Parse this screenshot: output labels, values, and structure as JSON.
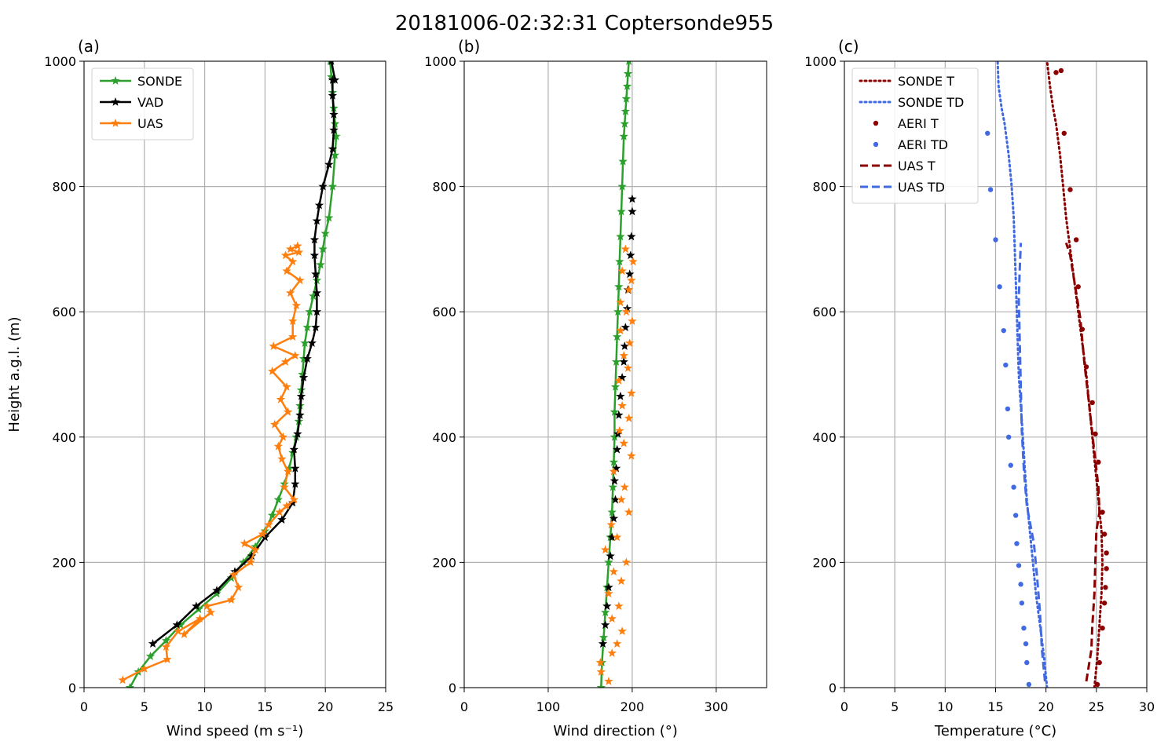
{
  "figure": {
    "title": "20181006-02:32:31 Coptersonde955"
  },
  "chart_data": [
    {
      "panel_label": "(a)",
      "type": "line",
      "xlabel": "Wind speed (m s⁻¹)",
      "ylabel": "Height a.g.l. (m)",
      "xlim": [
        0,
        25
      ],
      "ylim": [
        0,
        1000
      ],
      "xticks": [
        0,
        5,
        10,
        15,
        20,
        25
      ],
      "yticks": [
        0,
        200,
        400,
        600,
        800,
        1000
      ],
      "grid": true,
      "legend": {
        "position": "top-left"
      },
      "series": [
        {
          "name": "SONDE",
          "color": "#2ca02c",
          "line": "solid",
          "marker": "star",
          "x": [
            3.8,
            4.5,
            5.5,
            6.8,
            8.0,
            9.5,
            11.0,
            12.2,
            13.2,
            14.2,
            15.0,
            15.6,
            16.1,
            16.6,
            17.0,
            17.3,
            17.6,
            17.8,
            17.9,
            18.0,
            18.1,
            18.2,
            18.3,
            18.5,
            18.7,
            19.0,
            19.3,
            19.6,
            19.8,
            20.0,
            20.3,
            20.6,
            20.8,
            20.9,
            20.8,
            20.7,
            20.6,
            20.5,
            20.4
          ],
          "y": [
            0,
            25,
            50,
            75,
            100,
            125,
            150,
            175,
            200,
            225,
            250,
            275,
            300,
            325,
            350,
            375,
            400,
            425,
            450,
            475,
            500,
            525,
            550,
            575,
            600,
            625,
            650,
            675,
            700,
            725,
            750,
            800,
            850,
            880,
            900,
            925,
            950,
            975,
            1000
          ]
        },
        {
          "name": "VAD",
          "color": "#000000",
          "line": "solid",
          "marker": "star",
          "x": [
            5.7,
            7.7,
            9.3,
            11.0,
            12.5,
            13.9,
            15.0,
            16.4,
            17.3,
            17.5,
            17.5,
            17.4,
            17.7,
            17.9,
            18.0,
            18.2,
            18.5,
            18.9,
            19.2,
            19.3,
            19.3,
            19.2,
            19.1,
            19.1,
            19.3,
            19.5,
            19.8,
            20.3,
            20.6,
            20.7,
            20.7,
            20.6,
            20.6,
            20.8,
            20.5
          ],
          "y": [
            70,
            100,
            130,
            155,
            185,
            210,
            240,
            268,
            295,
            325,
            350,
            380,
            405,
            435,
            465,
            495,
            525,
            550,
            575,
            600,
            630,
            660,
            690,
            715,
            745,
            770,
            800,
            835,
            860,
            890,
            915,
            945,
            970,
            970,
            1000
          ]
        },
        {
          "name": "UAS",
          "color": "#ff7f0e",
          "line": "solid",
          "marker": "star",
          "x": [
            3.2,
            5.0,
            6.9,
            6.8,
            7.8,
            9.6,
            8.3,
            10.5,
            10.2,
            12.2,
            12.8,
            12.4,
            13.8,
            14.2,
            13.3,
            14.8,
            15.3,
            16.2,
            16.8,
            17.4,
            16.6,
            16.9,
            16.4,
            16.1,
            16.5,
            15.8,
            16.9,
            16.3,
            16.8,
            15.6,
            16.7,
            17.5,
            15.7,
            17.3,
            17.3,
            17.6,
            17.1,
            17.9,
            16.8,
            17.3,
            16.7,
            17.8,
            17.1,
            17.7
          ],
          "y": [
            12,
            30,
            45,
            65,
            90,
            110,
            85,
            120,
            130,
            140,
            160,
            180,
            200,
            220,
            230,
            245,
            260,
            280,
            290,
            300,
            320,
            345,
            365,
            385,
            400,
            420,
            440,
            460,
            480,
            505,
            520,
            530,
            545,
            560,
            585,
            610,
            630,
            650,
            665,
            680,
            690,
            695,
            700,
            705
          ]
        }
      ]
    },
    {
      "panel_label": "(b)",
      "type": "line",
      "xlabel": "Wind direction (°)",
      "xlim": [
        0,
        360
      ],
      "ylim": [
        0,
        1000
      ],
      "xticks": [
        0,
        100,
        200,
        300
      ],
      "yticks": [
        0,
        200,
        400,
        600,
        800,
        1000
      ],
      "grid": true,
      "series": [
        {
          "name": "SONDE",
          "color": "#2ca02c",
          "line": "solid",
          "marker": "star",
          "x": [
            163,
            164,
            166,
            168,
            170,
            172,
            174,
            176,
            177,
            178,
            179,
            179,
            180,
            181,
            182,
            183,
            184,
            185,
            186,
            187,
            188,
            189,
            190,
            191,
            192,
            193,
            194,
            195,
            196
          ],
          "y": [
            0,
            40,
            80,
            120,
            160,
            200,
            240,
            280,
            320,
            360,
            400,
            440,
            480,
            520,
            560,
            600,
            640,
            680,
            720,
            760,
            800,
            840,
            880,
            900,
            920,
            940,
            960,
            980,
            1000
          ]
        },
        {
          "name": "VAD",
          "color": "#000000",
          "line": "none",
          "marker": "star",
          "x": [
            165,
            168,
            170,
            172,
            174,
            176,
            178,
            180,
            179,
            181,
            182,
            183,
            184,
            186,
            188,
            190,
            191,
            192,
            194,
            195,
            197,
            198,
            199,
            200,
            200
          ],
          "y": [
            70,
            100,
            130,
            160,
            210,
            240,
            270,
            300,
            330,
            350,
            380,
            405,
            435,
            465,
            495,
            520,
            545,
            575,
            605,
            635,
            660,
            690,
            720,
            760,
            780
          ]
        },
        {
          "name": "UAS",
          "color": "#ff7f0e",
          "line": "none",
          "marker": "star",
          "x": [
            172,
            163,
            162,
            176,
            182,
            188,
            176,
            184,
            172,
            187,
            178,
            193,
            168,
            182,
            175,
            196,
            187,
            191,
            178,
            199,
            190,
            185,
            196,
            188,
            199,
            184,
            195,
            190,
            197,
            186,
            200,
            193,
            186,
            196,
            199,
            188,
            201,
            192
          ],
          "y": [
            10,
            25,
            40,
            55,
            70,
            90,
            110,
            130,
            150,
            170,
            185,
            200,
            220,
            240,
            260,
            280,
            300,
            320,
            345,
            370,
            390,
            410,
            430,
            450,
            470,
            490,
            510,
            530,
            550,
            570,
            585,
            600,
            615,
            635,
            650,
            665,
            680,
            700
          ]
        }
      ]
    },
    {
      "panel_label": "(c)",
      "type": "line",
      "xlabel": "Temperature (°C)",
      "xlim": [
        0,
        30
      ],
      "ylim": [
        0,
        1000
      ],
      "xticks": [
        0,
        5,
        10,
        15,
        20,
        25,
        30
      ],
      "yticks": [
        0,
        200,
        400,
        600,
        800,
        1000
      ],
      "grid": true,
      "legend": {
        "position": "top-left"
      },
      "series": [
        {
          "name": "SONDE T",
          "color": "#8b0000",
          "line": "dotted",
          "marker": "none",
          "x": [
            24.8,
            25.1,
            25.3,
            25.5,
            25.6,
            25.5,
            25.2,
            24.9,
            24.6,
            24.3,
            24.0,
            23.6,
            23.2,
            22.8,
            22.4,
            22.0,
            21.7,
            21.4,
            21.0,
            20.7,
            20.4,
            20.1
          ],
          "y": [
            0,
            50,
            100,
            150,
            200,
            250,
            300,
            350,
            400,
            450,
            500,
            550,
            600,
            650,
            700,
            750,
            800,
            850,
            900,
            925,
            960,
            1000
          ]
        },
        {
          "name": "SONDE TD",
          "color": "#4169e1",
          "line": "dotted",
          "marker": "none",
          "x": [
            20.1,
            19.8,
            19.4,
            19.0,
            18.7,
            18.4,
            18.1,
            17.9,
            17.7,
            17.5,
            17.3,
            17.2,
            17.1,
            17.0,
            16.9,
            16.8,
            16.6,
            16.3,
            15.9,
            15.6,
            15.3,
            15.2
          ],
          "y": [
            0,
            50,
            100,
            150,
            200,
            250,
            300,
            350,
            400,
            450,
            500,
            550,
            600,
            650,
            700,
            750,
            800,
            850,
            900,
            925,
            960,
            1000
          ]
        },
        {
          "name": "AERI T",
          "color": "#8b0000",
          "line": "none",
          "marker": "dot",
          "x": [
            25.1,
            25.3,
            25.6,
            25.8,
            25.9,
            26.0,
            26.0,
            25.8,
            25.6,
            25.2,
            24.9,
            24.6,
            24.0,
            23.6,
            23.2,
            23.0,
            22.4,
            21.8,
            21.5,
            21.0
          ],
          "y": [
            5,
            40,
            95,
            135,
            160,
            190,
            215,
            245,
            280,
            360,
            405,
            455,
            512,
            572,
            640,
            715,
            795,
            885,
            985,
            982
          ]
        },
        {
          "name": "AERI TD",
          "color": "#4169e1",
          "line": "none",
          "marker": "dot",
          "x": [
            18.3,
            18.1,
            18.0,
            17.8,
            17.6,
            17.5,
            17.3,
            17.1,
            17.0,
            16.8,
            16.5,
            16.3,
            16.2,
            16.0,
            15.8,
            15.4,
            15.0,
            14.5,
            14.2
          ],
          "y": [
            5,
            40,
            70,
            95,
            135,
            165,
            195,
            230,
            275,
            320,
            355,
            400,
            445,
            515,
            570,
            640,
            715,
            795,
            885
          ]
        },
        {
          "name": "UAS T",
          "color": "#8b0000",
          "line": "dashed",
          "marker": "none",
          "x": [
            24.0,
            24.5,
            24.6,
            24.8,
            24.9,
            25.0,
            25.3,
            25.2,
            24.7,
            24.3,
            23.8,
            23.4,
            22.9,
            22.6,
            22.4,
            22.0
          ],
          "y": [
            10,
            60,
            100,
            150,
            200,
            250,
            280,
            320,
            390,
            450,
            520,
            590,
            640,
            670,
            690,
            710
          ]
        },
        {
          "name": "UAS TD",
          "color": "#4169e1",
          "line": "dashed",
          "marker": "none",
          "x": [
            19.9,
            19.6,
            19.4,
            19.1,
            18.8,
            18.4,
            18.1,
            17.8,
            17.6,
            17.5,
            17.4,
            17.3,
            17.4,
            17.5
          ],
          "y": [
            10,
            60,
            120,
            180,
            230,
            265,
            290,
            350,
            410,
            480,
            550,
            620,
            670,
            710
          ]
        }
      ]
    }
  ]
}
